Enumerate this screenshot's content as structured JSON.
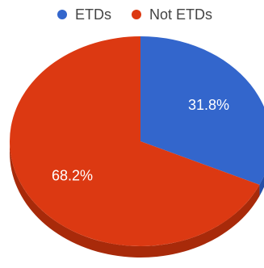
{
  "chart_data": {
    "type": "pie",
    "style": "3d",
    "title": "",
    "legend_position": "top",
    "series": [
      {
        "name": "ETDs",
        "value": 31.8,
        "label": "31.8%",
        "color": "#3366cc",
        "side_color": "#2550a8"
      },
      {
        "name": "Not ETDs",
        "value": 68.2,
        "label": "68.2%",
        "color": "#dc3912",
        "side_color": "#a82a0a"
      }
    ]
  }
}
